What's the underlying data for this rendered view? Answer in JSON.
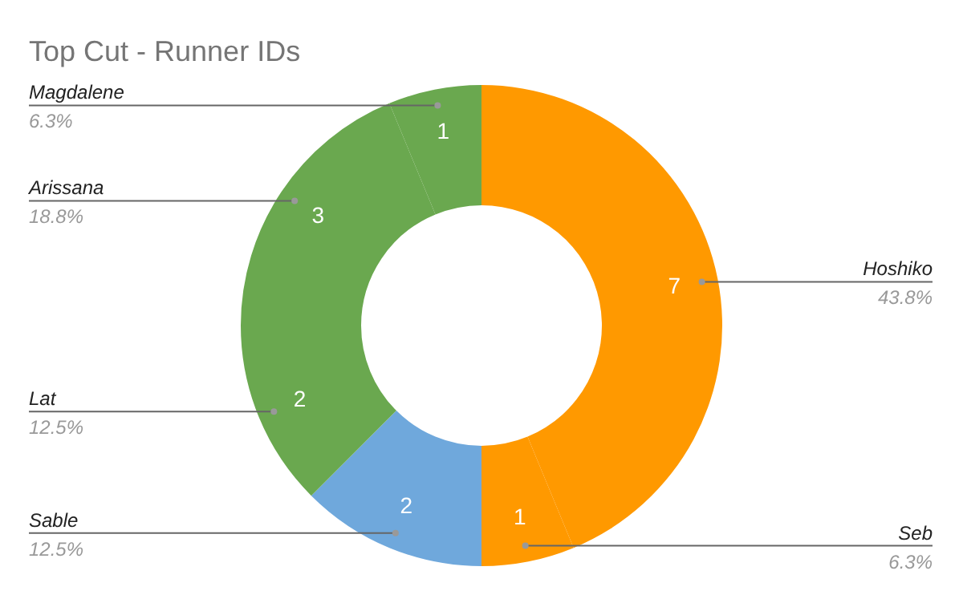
{
  "chart_data": {
    "type": "donut",
    "title": "Top Cut - Runner IDs",
    "categories": [
      "Hoshiko",
      "Seb",
      "Sable",
      "Lat",
      "Arissana",
      "Magdalene"
    ],
    "values": [
      7,
      1,
      2,
      2,
      3,
      1
    ],
    "colors": [
      "#ff9900",
      "#ff9900",
      "#6fa8dc",
      "#6aa84f",
      "#6aa84f",
      "#6aa84f"
    ],
    "data_labels": true,
    "annotations": [
      "43.8%",
      "6.3%",
      "12.5%",
      "12.5%",
      "18.8%",
      "6.3%"
    ],
    "legend": false
  }
}
